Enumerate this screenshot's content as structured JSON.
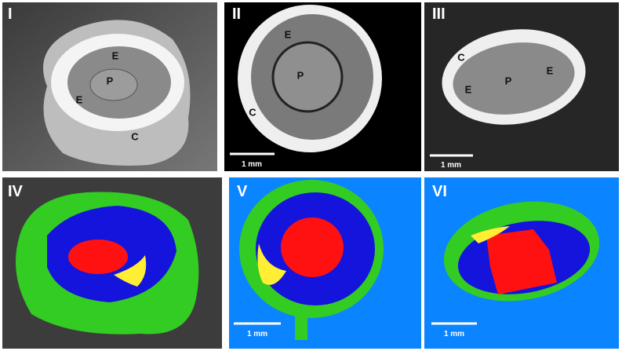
{
  "panels": [
    {
      "label": "I",
      "annotations": [
        "E",
        "P",
        "E",
        "C"
      ]
    },
    {
      "label": "II",
      "annotations": [
        "E",
        "P",
        "C"
      ],
      "scale_bar": "1 mm"
    },
    {
      "label": "III",
      "annotations": [
        "C",
        "E",
        "P",
        "E"
      ],
      "scale_bar": "1 mm"
    },
    {
      "label": "IV"
    },
    {
      "label": "V",
      "scale_bar": "1 mm"
    },
    {
      "label": "VI",
      "scale_bar": "1 mm"
    }
  ]
}
